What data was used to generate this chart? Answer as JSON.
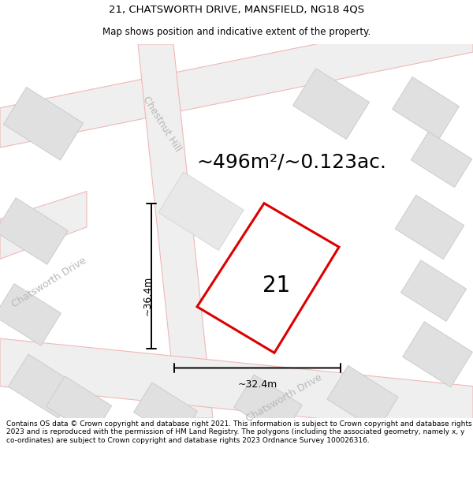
{
  "title": "21, CHATSWORTH DRIVE, MANSFIELD, NG18 4QS",
  "subtitle": "Map shows position and indicative extent of the property.",
  "area_text": "~496m²/~0.123ac.",
  "property_number": "21",
  "dim_width": "~32.4m",
  "dim_height": "~36.4m",
  "footer": "Contains OS data © Crown copyright and database right 2021. This information is subject to Crown copyright and database rights 2023 and is reproduced with the permission of HM Land Registry. The polygons (including the associated geometry, namely x, y co-ordinates) are subject to Crown copyright and database rights 2023 Ordnance Survey 100026316.",
  "bg_color": "#ffffff",
  "map_bg": "#ffffff",
  "road_fill": "#efefef",
  "road_stroke": "#f0b8b8",
  "building_fill": "#e0e0e0",
  "building_edge": "#cccccc",
  "property_fill": "#ffffff",
  "property_stroke": "#dd0000",
  "dim_color": "#000000",
  "street_label_color": "#b8b8b8",
  "street_label_1": "Chestnut Hill",
  "street_label_2": "Chatsworth Drive",
  "street_label_3": "Chatsworth Drive",
  "title_fontsize": 9.5,
  "subtitle_fontsize": 8.5,
  "footer_fontsize": 6.5,
  "area_fontsize": 18,
  "prop_num_fontsize": 20,
  "dim_fontsize": 9,
  "street_fontsize": 9
}
